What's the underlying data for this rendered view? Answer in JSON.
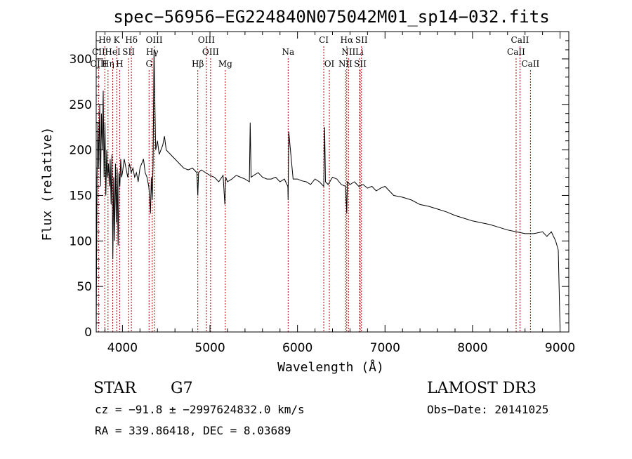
{
  "chart_data": {
    "type": "line",
    "title": "spec−56956−EG224840N075042M01_sp14−032.fits",
    "xlabel": "Wavelength (Å)",
    "ylabel": "Flux (relative)",
    "xlim": [
      3700,
      9100
    ],
    "ylim": [
      0,
      330
    ],
    "xticks": [
      4000,
      5000,
      6000,
      7000,
      8000,
      9000
    ],
    "yticks": [
      0,
      50,
      100,
      150,
      200,
      250,
      300
    ],
    "xtick_labels": [
      "4000",
      "5000",
      "6000",
      "7000",
      "8000",
      "9000"
    ],
    "ytick_labels": [
      "0",
      "50",
      "100",
      "150",
      "200",
      "250",
      "300"
    ],
    "series": [
      {
        "x": [
          3700,
          3710,
          3720,
          3730,
          3740,
          3750,
          3760,
          3770,
          3780,
          3790,
          3800,
          3810,
          3820,
          3830,
          3840,
          3850,
          3860,
          3870,
          3880,
          3890,
          3900,
          3910,
          3920,
          3930,
          3940,
          3950,
          3960,
          3970,
          3980,
          3990,
          4000,
          4020,
          4040,
          4060,
          4080,
          4100,
          4120,
          4140,
          4160,
          4180,
          4200,
          4220,
          4240,
          4260,
          4280,
          4300,
          4310,
          4320,
          4330,
          4340,
          4350,
          4360,
          4380,
          4400,
          4420,
          4440,
          4460,
          4480,
          4500,
          4550,
          4600,
          4650,
          4700,
          4750,
          4800,
          4850,
          4861,
          4870,
          4900,
          4950,
          5000,
          5050,
          5100,
          5150,
          5170,
          5180,
          5200,
          5250,
          5300,
          5350,
          5400,
          5450,
          5460,
          5470,
          5500,
          5550,
          5600,
          5650,
          5700,
          5750,
          5800,
          5850,
          5890,
          5893,
          5900,
          5950,
          6000,
          6050,
          6100,
          6150,
          6200,
          6250,
          6300,
          6310,
          6320,
          6350,
          6400,
          6450,
          6500,
          6550,
          6563,
          6570,
          6600,
          6650,
          6700,
          6750,
          6800,
          6850,
          6900,
          6950,
          7000,
          7100,
          7200,
          7300,
          7400,
          7500,
          7600,
          7700,
          7800,
          7900,
          8000,
          8100,
          8200,
          8300,
          8400,
          8500,
          8600,
          8700,
          8800,
          8850,
          8900,
          8950,
          8980,
          9000
        ],
        "y": [
          0,
          170,
          230,
          180,
          250,
          160,
          240,
          200,
          265,
          170,
          230,
          150,
          200,
          170,
          185,
          160,
          190,
          140,
          195,
          80,
          170,
          100,
          185,
          120,
          180,
          95,
          175,
          160,
          190,
          170,
          175,
          190,
          180,
          170,
          185,
          175,
          180,
          170,
          175,
          165,
          180,
          185,
          190,
          175,
          170,
          160,
          150,
          130,
          170,
          145,
          185,
          310,
          200,
          210,
          195,
          200,
          205,
          215,
          200,
          195,
          190,
          185,
          180,
          178,
          180,
          175,
          150,
          175,
          178,
          175,
          172,
          170,
          165,
          172,
          140,
          170,
          165,
          168,
          172,
          170,
          168,
          165,
          230,
          170,
          172,
          175,
          170,
          168,
          168,
          170,
          165,
          168,
          160,
          145,
          220,
          168,
          168,
          166,
          165,
          162,
          168,
          165,
          160,
          225,
          165,
          162,
          170,
          168,
          162,
          160,
          130,
          165,
          162,
          165,
          160,
          162,
          158,
          160,
          155,
          158,
          160,
          150,
          148,
          145,
          140,
          138,
          135,
          132,
          128,
          125,
          122,
          120,
          118,
          115,
          112,
          110,
          108,
          108,
          110,
          105,
          110,
          100,
          90,
          5
        ]
      }
    ],
    "lines": [
      {
        "name": "Hθ",
        "w": 3798,
        "row": 1
      },
      {
        "name": "K",
        "w": 3934,
        "row": 1
      },
      {
        "name": "Hδ",
        "w": 4102,
        "row": 1
      },
      {
        "name": "OIII",
        "w": 4363,
        "row": 1
      },
      {
        "name": "OIII",
        "w": 4959,
        "row": 1
      },
      {
        "name": "CI",
        "w": 6300,
        "row": 1
      },
      {
        "name": "Hα",
        "w": 6563,
        "row": 1
      },
      {
        "name": "SII",
        "w": 6731,
        "row": 1
      },
      {
        "name": "CaII",
        "w": 8542,
        "row": 1
      },
      {
        "name": "CII",
        "w": 3727,
        "row": 2
      },
      {
        "name": "HeI",
        "w": 3889,
        "row": 2
      },
      {
        "name": "SII",
        "w": 4070,
        "row": 2
      },
      {
        "name": "Hγ",
        "w": 4340,
        "row": 2
      },
      {
        "name": "OIII",
        "w": 5007,
        "row": 2
      },
      {
        "name": "Na",
        "w": 5893,
        "row": 2
      },
      {
        "name": "NII",
        "w": 6583,
        "row": 2
      },
      {
        "name": "Li",
        "w": 6708,
        "row": 2
      },
      {
        "name": "CaII",
        "w": 8498,
        "row": 2
      },
      {
        "name": "OIII",
        "w": 3727,
        "row": 3
      },
      {
        "name": "Hη",
        "w": 3835,
        "row": 3
      },
      {
        "name": "H",
        "w": 3968,
        "row": 3
      },
      {
        "name": "G",
        "w": 4304,
        "row": 3
      },
      {
        "name": "Hβ",
        "w": 4861,
        "row": 3
      },
      {
        "name": "Mg",
        "w": 5175,
        "row": 3
      },
      {
        "name": "OI",
        "w": 6364,
        "row": 3
      },
      {
        "name": "NII",
        "w": 6548,
        "row": 3
      },
      {
        "name": "SII",
        "w": 6717,
        "row": 3
      },
      {
        "name": "CaII",
        "w": 8662,
        "row": 3
      }
    ]
  },
  "info": {
    "class": "STAR",
    "subclass": "G7",
    "survey": "LAMOST DR3",
    "cz": "cz = −91.8 ± −2997624832.0 km/s",
    "obs_date": "Obs−Date: 20141025",
    "radec": "RA = 339.86418, DEC =   8.03689"
  },
  "colors": {
    "spectrum": "#000000",
    "line_markers": "#aa0000"
  }
}
